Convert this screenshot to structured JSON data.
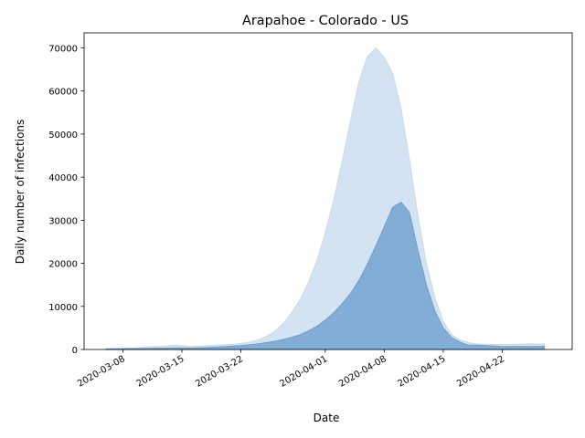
{
  "chart_data": {
    "type": "area",
    "title": "Arapahoe - Colorado - US",
    "xlabel": "Date",
    "ylabel": "Daily number of infections",
    "x_start": "2020-03-06",
    "x_tick_labels": [
      "2020-03-08",
      "2020-03-15",
      "2020-03-22",
      "2020-04-01",
      "2020-04-08",
      "2020-04-15",
      "2020-04-22"
    ],
    "y_tick_labels": [
      "0",
      "10000",
      "20000",
      "30000",
      "40000",
      "50000",
      "60000",
      "70000"
    ],
    "ylim": [
      0,
      73500
    ],
    "grid": false,
    "legend": "none",
    "colors": {
      "outer_band": "#c6d9ec",
      "inner_band": "#6b9fcf",
      "spine": "#000000"
    },
    "x": [
      "2020-03-06",
      "2020-03-07",
      "2020-03-08",
      "2020-03-09",
      "2020-03-10",
      "2020-03-11",
      "2020-03-12",
      "2020-03-13",
      "2020-03-14",
      "2020-03-15",
      "2020-03-16",
      "2020-03-17",
      "2020-03-18",
      "2020-03-19",
      "2020-03-20",
      "2020-03-21",
      "2020-03-22",
      "2020-03-23",
      "2020-03-24",
      "2020-03-25",
      "2020-03-26",
      "2020-03-27",
      "2020-03-28",
      "2020-03-29",
      "2020-03-30",
      "2020-03-31",
      "2020-04-01",
      "2020-04-02",
      "2020-04-03",
      "2020-04-04",
      "2020-04-05",
      "2020-04-06",
      "2020-04-07",
      "2020-04-08",
      "2020-04-09",
      "2020-04-10",
      "2020-04-11",
      "2020-04-12",
      "2020-04-13",
      "2020-04-14",
      "2020-04-15",
      "2020-04-16",
      "2020-04-17",
      "2020-04-18",
      "2020-04-19",
      "2020-04-20",
      "2020-04-21",
      "2020-04-22",
      "2020-04-23",
      "2020-04-24",
      "2020-04-25",
      "2020-04-26",
      "2020-04-27"
    ],
    "series": [
      {
        "role": "outer_band",
        "upper": [
          200,
          250,
          300,
          350,
          450,
          600,
          700,
          800,
          1000,
          900,
          700,
          800,
          900,
          1000,
          1100,
          1200,
          1400,
          1700,
          2200,
          3000,
          4200,
          6000,
          8500,
          11500,
          15500,
          20500,
          27000,
          34500,
          43500,
          53000,
          62000,
          68000,
          70000,
          67800,
          64000,
          56000,
          44000,
          31000,
          20000,
          12000,
          6500,
          3500,
          2200,
          1600,
          1300,
          1200,
          1200,
          1200,
          1200,
          1250,
          1300,
          1300,
          1300
        ],
        "lower": [
          0,
          0,
          0,
          0,
          0,
          0,
          0,
          0,
          0,
          0,
          0,
          0,
          0,
          0,
          0,
          0,
          0,
          0,
          0,
          0,
          0,
          0,
          0,
          0,
          0,
          0,
          0,
          0,
          0,
          0,
          0,
          0,
          0,
          0,
          0,
          0,
          0,
          0,
          0,
          0,
          0,
          0,
          0,
          0,
          0,
          0,
          0,
          0,
          0,
          0,
          0,
          0,
          0
        ]
      },
      {
        "role": "inner_band",
        "upper": [
          100,
          120,
          150,
          180,
          220,
          250,
          280,
          300,
          400,
          350,
          350,
          400,
          450,
          550,
          650,
          800,
          900,
          1100,
          1300,
          1600,
          1900,
          2300,
          2800,
          3400,
          4300,
          5400,
          6800,
          8500,
          10600,
          13000,
          16000,
          19800,
          24000,
          28500,
          33000,
          34200,
          31800,
          23000,
          15000,
          9000,
          5000,
          2800,
          1700,
          1000,
          1000,
          900,
          800,
          700,
          700,
          700,
          700,
          700,
          750
        ],
        "lower": [
          0,
          0,
          0,
          0,
          0,
          0,
          0,
          0,
          0,
          0,
          0,
          0,
          0,
          0,
          0,
          0,
          0,
          0,
          0,
          0,
          0,
          0,
          0,
          0,
          0,
          0,
          0,
          0,
          0,
          0,
          0,
          0,
          0,
          0,
          0,
          0,
          0,
          0,
          0,
          0,
          0,
          0,
          0,
          0,
          0,
          0,
          0,
          0,
          0,
          0,
          0,
          0,
          0
        ]
      }
    ]
  }
}
